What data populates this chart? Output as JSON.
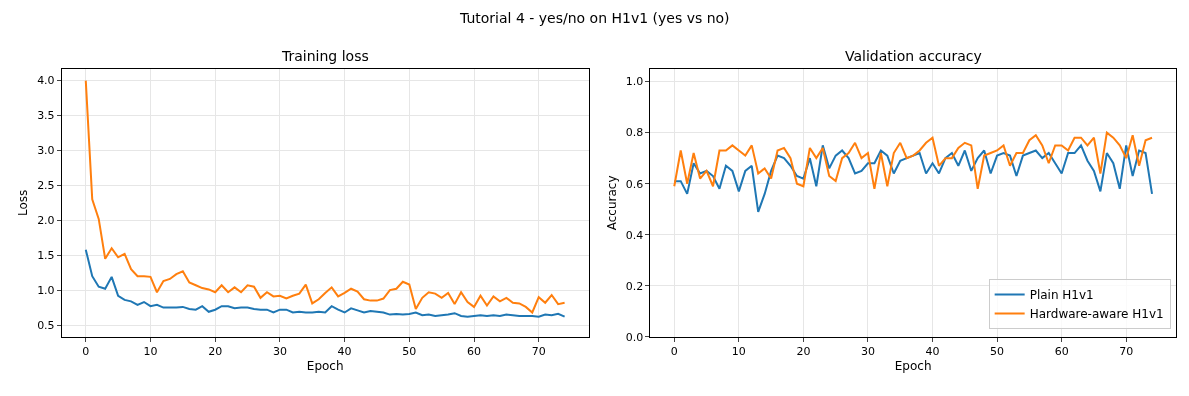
{
  "chart_data": [
    {
      "type": "line",
      "title": "Training loss",
      "xlabel": "Epoch",
      "ylabel": "Loss",
      "annotations": [
        "Tutorial 4 - yes/no on H1v1 (yes vs no)"
      ],
      "x": [
        0,
        1,
        2,
        3,
        4,
        5,
        6,
        7,
        8,
        9,
        10,
        11,
        12,
        13,
        14,
        15,
        16,
        17,
        18,
        19,
        20,
        21,
        22,
        23,
        24,
        25,
        26,
        27,
        28,
        29,
        30,
        31,
        32,
        33,
        34,
        35,
        36,
        37,
        38,
        39,
        40,
        41,
        42,
        43,
        44,
        45,
        46,
        47,
        48,
        49,
        50,
        51,
        52,
        53,
        54,
        55,
        56,
        57,
        58,
        59,
        60,
        61,
        62,
        63,
        64,
        65,
        66,
        67,
        68,
        69,
        70,
        71,
        72,
        73,
        74
      ],
      "series": [
        {
          "color": "#1f77b4",
          "values": [
            1.58,
            1.2,
            1.05,
            1.02,
            1.19,
            0.92,
            0.86,
            0.84,
            0.79,
            0.83,
            0.77,
            0.79,
            0.75,
            0.75,
            0.75,
            0.76,
            0.73,
            0.72,
            0.77,
            0.69,
            0.72,
            0.77,
            0.77,
            0.74,
            0.75,
            0.75,
            0.73,
            0.72,
            0.72,
            0.68,
            0.72,
            0.72,
            0.68,
            0.69,
            0.68,
            0.68,
            0.69,
            0.68,
            0.77,
            0.72,
            0.68,
            0.74,
            0.71,
            0.68,
            0.7,
            0.69,
            0.68,
            0.65,
            0.66,
            0.65,
            0.66,
            0.68,
            0.64,
            0.65,
            0.63,
            0.64,
            0.65,
            0.67,
            0.63,
            0.62,
            0.63,
            0.64,
            0.63,
            0.64,
            0.63,
            0.65,
            0.64,
            0.63,
            0.63,
            0.63,
            0.62,
            0.65,
            0.64,
            0.66,
            0.62
          ]
        },
        {
          "color": "#ff7f0e",
          "values": [
            4.0,
            2.3,
            2.02,
            1.45,
            1.6,
            1.47,
            1.52,
            1.3,
            1.2,
            1.2,
            1.19,
            0.97,
            1.13,
            1.16,
            1.23,
            1.27,
            1.11,
            1.07,
            1.03,
            1.01,
            0.97,
            1.07,
            0.97,
            1.04,
            0.97,
            1.07,
            1.05,
            0.89,
            0.97,
            0.91,
            0.92,
            0.88,
            0.92,
            0.95,
            1.08,
            0.81,
            0.87,
            0.96,
            1.04,
            0.91,
            0.96,
            1.02,
            0.98,
            0.87,
            0.85,
            0.85,
            0.88,
            1.0,
            1.02,
            1.12,
            1.08,
            0.73,
            0.89,
            0.97,
            0.95,
            0.89,
            0.96,
            0.8,
            0.97,
            0.83,
            0.76,
            0.92,
            0.78,
            0.91,
            0.84,
            0.89,
            0.82,
            0.81,
            0.76,
            0.68,
            0.9,
            0.82,
            0.93,
            0.8,
            0.82
          ]
        }
      ],
      "xlim": [
        -3.7,
        77.7
      ],
      "xticks": [
        0,
        10,
        20,
        30,
        40,
        50,
        60,
        70
      ],
      "ylim": [
        0.33,
        4.17
      ],
      "yticks": [
        0.5,
        {
          "value": 1,
          "label": "1.0"
        },
        1.5,
        {
          "value": 2,
          "label": "2.0"
        },
        2.5,
        {
          "value": 3,
          "label": "3.0"
        },
        3.5,
        {
          "value": 4,
          "label": "4.0"
        }
      ],
      "grid": true,
      "legend": false,
      "line_style": "solid",
      "marker": "none"
    },
    {
      "type": "line",
      "title": "Validation accuracy",
      "xlabel": "Epoch",
      "ylabel": "Accuracy",
      "x": [
        0,
        1,
        2,
        3,
        4,
        5,
        6,
        7,
        8,
        9,
        10,
        11,
        12,
        13,
        14,
        15,
        16,
        17,
        18,
        19,
        20,
        21,
        22,
        23,
        24,
        25,
        26,
        27,
        28,
        29,
        30,
        31,
        32,
        33,
        34,
        35,
        36,
        37,
        38,
        39,
        40,
        41,
        42,
        43,
        44,
        45,
        46,
        47,
        48,
        49,
        50,
        51,
        52,
        53,
        54,
        55,
        56,
        57,
        58,
        59,
        60,
        61,
        62,
        63,
        64,
        65,
        66,
        67,
        68,
        69,
        70,
        71,
        72,
        73,
        74
      ],
      "series": [
        {
          "name": "Plain H1v1",
          "color": "#1f77b4",
          "values": [
            0.61,
            0.61,
            0.56,
            0.68,
            0.64,
            0.65,
            0.63,
            0.58,
            0.67,
            0.65,
            0.57,
            0.65,
            0.67,
            0.49,
            0.56,
            0.65,
            0.71,
            0.7,
            0.67,
            0.63,
            0.62,
            0.7,
            0.59,
            0.75,
            0.66,
            0.71,
            0.73,
            0.7,
            0.64,
            0.65,
            0.68,
            0.68,
            0.73,
            0.71,
            0.64,
            0.69,
            0.7,
            0.71,
            0.72,
            0.64,
            0.68,
            0.64,
            0.7,
            0.72,
            0.67,
            0.73,
            0.65,
            0.7,
            0.73,
            0.64,
            0.71,
            0.72,
            0.71,
            0.63,
            0.71,
            0.72,
            0.73,
            0.7,
            0.72,
            0.68,
            0.64,
            0.72,
            0.72,
            0.75,
            0.69,
            0.65,
            0.57,
            0.72,
            0.68,
            0.58,
            0.75,
            0.63,
            0.73,
            0.72,
            0.56
          ]
        },
        {
          "name": "Hardware-aware H1v1",
          "color": "#ff7f0e",
          "values": [
            0.59,
            0.73,
            0.6,
            0.72,
            0.62,
            0.65,
            0.59,
            0.73,
            0.73,
            0.75,
            0.73,
            0.71,
            0.75,
            0.64,
            0.66,
            0.62,
            0.73,
            0.74,
            0.7,
            0.6,
            0.59,
            0.74,
            0.7,
            0.74,
            0.63,
            0.61,
            0.7,
            0.72,
            0.76,
            0.7,
            0.72,
            0.58,
            0.72,
            0.59,
            0.72,
            0.76,
            0.7,
            0.71,
            0.73,
            0.76,
            0.78,
            0.67,
            0.7,
            0.7,
            0.74,
            0.76,
            0.75,
            0.58,
            0.71,
            0.72,
            0.73,
            0.75,
            0.67,
            0.72,
            0.72,
            0.77,
            0.79,
            0.75,
            0.68,
            0.75,
            0.75,
            0.73,
            0.78,
            0.78,
            0.75,
            0.78,
            0.64,
            0.8,
            0.78,
            0.75,
            0.7,
            0.79,
            0.67,
            0.77,
            0.78
          ]
        }
      ],
      "xlim": [
        -3.7,
        77.7
      ],
      "xticks": [
        0,
        10,
        20,
        30,
        40,
        50,
        60,
        70
      ],
      "ylim": [
        0,
        1.05
      ],
      "yticks": [
        {
          "value": 0,
          "label": "0.0"
        },
        0.2,
        0.4,
        0.6,
        0.8,
        {
          "value": 1,
          "label": "1.0"
        }
      ],
      "grid": true,
      "legend": "bottom right",
      "line_style": "solid",
      "marker": "none"
    }
  ]
}
